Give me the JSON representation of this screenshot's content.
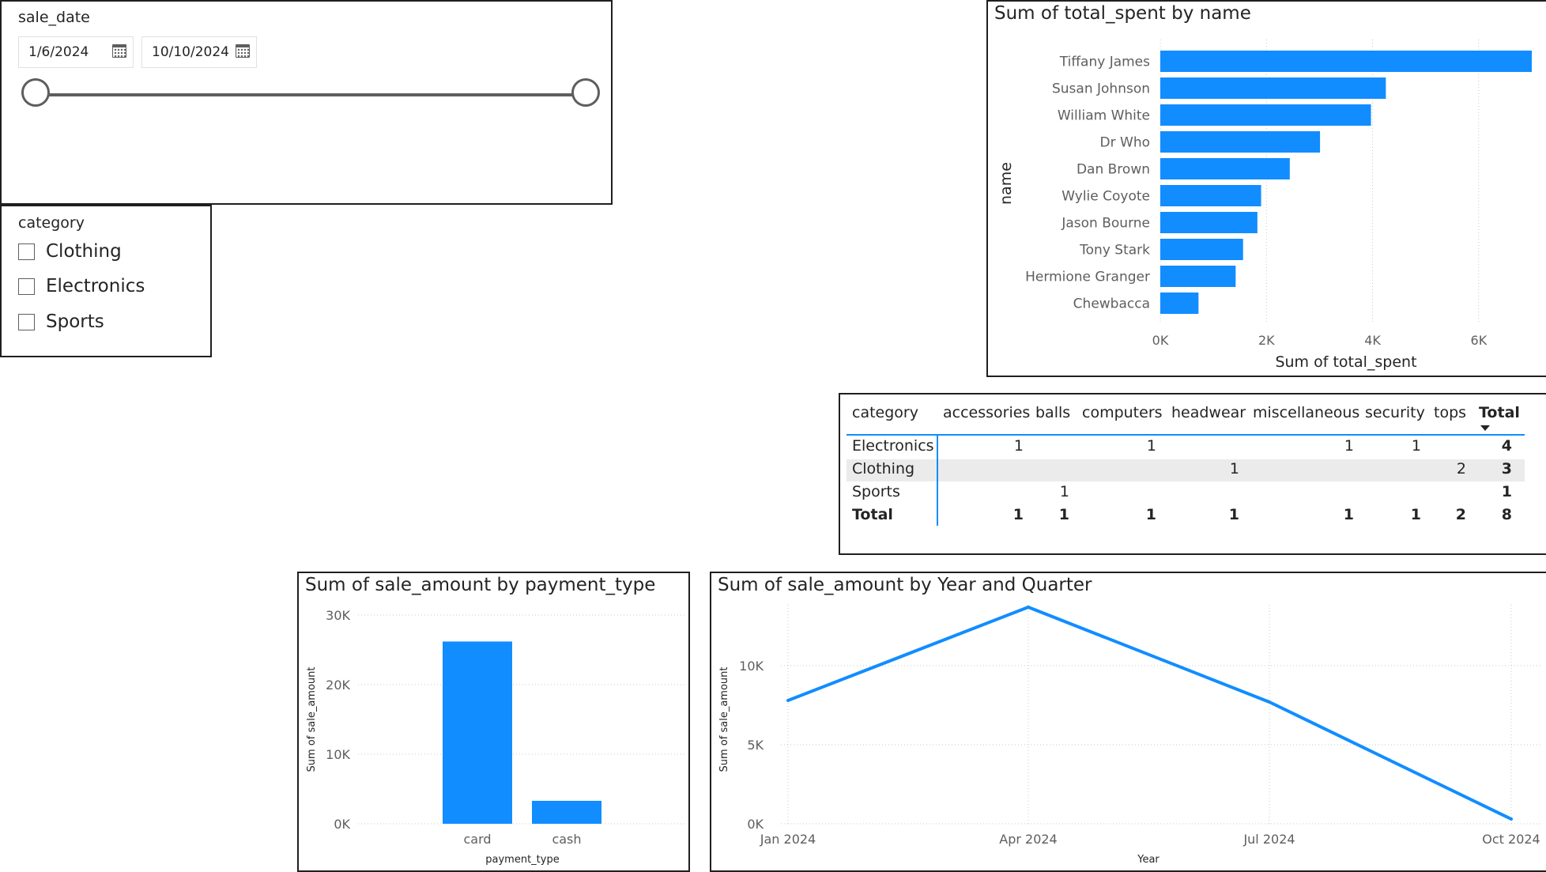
{
  "date_slicer": {
    "header": "sale_date",
    "start_date": "1/6/2024",
    "end_date": "10/10/2024"
  },
  "category_slicer": {
    "header": "category",
    "options": [
      "Clothing",
      "Electronics",
      "Sports"
    ]
  },
  "matrix": {
    "row_header": "category",
    "columns": [
      "accessories",
      "balls",
      "computers",
      "headwear",
      "miscellaneous",
      "security",
      "tops",
      "Total"
    ],
    "rows": [
      {
        "label": "Electronics",
        "values": [
          "1",
          "",
          "1",
          "",
          "1",
          "1",
          "",
          "4"
        ]
      },
      {
        "label": "Clothing",
        "values": [
          "",
          "",
          "",
          "1",
          "",
          "",
          "2",
          "3"
        ]
      },
      {
        "label": "Sports",
        "values": [
          "",
          "1",
          "",
          "",
          "",
          "",
          "",
          "1"
        ]
      }
    ],
    "total_row": {
      "label": "Total",
      "values": [
        "1",
        "1",
        "1",
        "1",
        "1",
        "1",
        "2",
        "8"
      ]
    }
  },
  "chart_data": [
    {
      "type": "bar",
      "orientation": "horizontal",
      "title": "Sum of total_spent by name",
      "xlabel": "Sum of total_spent",
      "ylabel": "name",
      "categories": [
        "Tiffany James",
        "Susan Johnson",
        "William White",
        "Dr Who",
        "Dan Brown",
        "Wylie Coyote",
        "Jason Bourne",
        "Tony Stark",
        "Hermione Granger",
        "Chewbacca"
      ],
      "values": [
        7000,
        4250,
        3970,
        3010,
        2440,
        1900,
        1830,
        1560,
        1420,
        720
      ],
      "xlim": [
        0,
        7000
      ],
      "ticks": [
        0,
        2000,
        4000,
        6000
      ],
      "tick_labels": [
        "0K",
        "2K",
        "4K",
        "6K"
      ],
      "color": "#118dff"
    },
    {
      "type": "bar",
      "title": "Sum of sale_amount by payment_type",
      "xlabel": "payment_type",
      "ylabel": "Sum of sale_amount",
      "categories": [
        "card",
        "cash"
      ],
      "values": [
        26200,
        3300
      ],
      "ylim": [
        0,
        30000
      ],
      "ticks": [
        0,
        10000,
        20000,
        30000
      ],
      "tick_labels": [
        "0K",
        "10K",
        "20K",
        "30K"
      ],
      "color": "#118dff"
    },
    {
      "type": "line",
      "title": "Sum of sale_amount by Year and Quarter",
      "xlabel": "Year",
      "ylabel": "Sum of sale_amount",
      "categories": [
        "Jan 2024",
        "Apr 2024",
        "Jul 2024",
        "Oct 2024"
      ],
      "values": [
        7800,
        13700,
        7700,
        300
      ],
      "ylim": [
        0,
        14000
      ],
      "ticks": [
        0,
        5000,
        10000
      ],
      "tick_labels": [
        "0K",
        "5K",
        "10K"
      ],
      "color": "#118dff"
    }
  ]
}
